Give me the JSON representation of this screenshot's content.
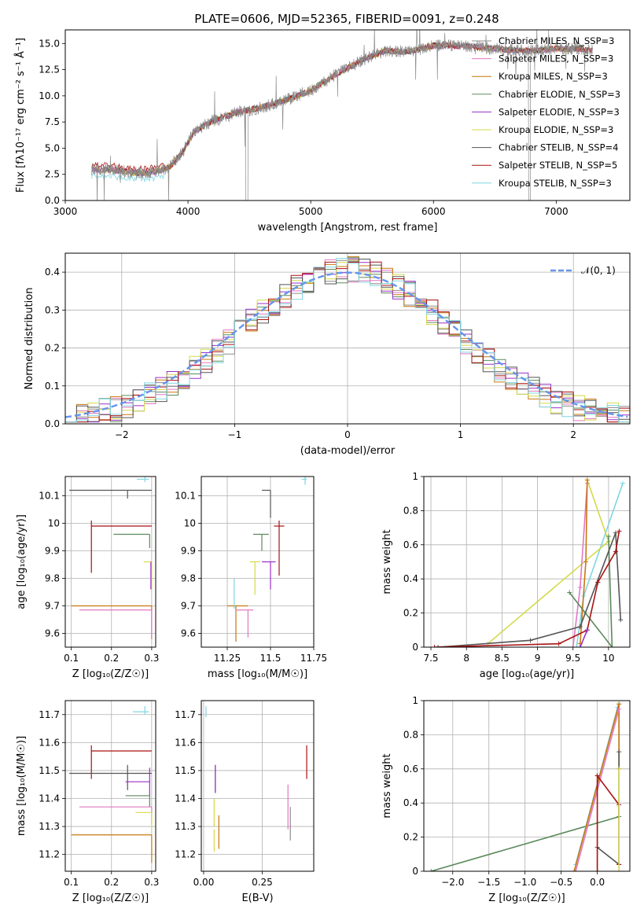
{
  "figure_title": "PLATE=0606, MJD=52365, FIBERID=0091, z=0.248",
  "chart_data": [
    {
      "type": "line",
      "id": "spectrum",
      "title": "PLATE=0606, MJD=52365, FIBERID=0091, z=0.248",
      "xlabel": "wavelength [Angstrom, rest frame]",
      "ylabel": "Flux [fλ10⁻¹⁷ erg cm⁻² s⁻¹ Å⁻¹]",
      "xlim": [
        3000,
        7600
      ],
      "ylim": [
        0,
        16.3
      ],
      "xticks": [
        3000,
        4000,
        5000,
        6000,
        7000
      ],
      "yticks": [
        0.0,
        2.5,
        5.0,
        7.5,
        10.0,
        12.5,
        15.0
      ],
      "ytick_labels": [
        "0.0",
        "2.5",
        "5.0",
        "7.5",
        "10.0",
        "12.5",
        "15.0"
      ],
      "legend_position": "right",
      "legend": [
        {
          "label": "Chabrier MILES, N_SSP=3",
          "color": "#8c8c8c"
        },
        {
          "label": "Salpeter MILES, N_SSP=3",
          "color": "#e377c2"
        },
        {
          "label": "Kroupa MILES, N_SSP=3",
          "color": "#c7770f"
        },
        {
          "label": "Chabrier ELODIE, N_SSP=3",
          "color": "#5b8a5b"
        },
        {
          "label": "Salpeter ELODIE, N_SSP=3",
          "color": "#9b30c8"
        },
        {
          "label": "Kroupa ELODIE, N_SSP=3",
          "color": "#d4d94a"
        },
        {
          "label": "Chabrier STELIB, N_SSP=4",
          "color": "#555555"
        },
        {
          "label": "Salpeter STELIB, N_SSP=5",
          "color": "#aa1111"
        },
        {
          "label": "Kroupa STELIB, N_SSP=3",
          "color": "#7fd6e0"
        }
      ],
      "continuum": {
        "x": [
          3200,
          3400,
          3600,
          3750,
          3850,
          3950,
          4050,
          4200,
          4400,
          4600,
          4800,
          5000,
          5200,
          5400,
          5600,
          5800,
          6000,
          6200,
          6400,
          6600,
          6800,
          7000,
          7200,
          7300
        ],
        "y": [
          3.0,
          2.9,
          2.6,
          2.8,
          3.2,
          4.5,
          6.6,
          7.6,
          8.4,
          8.9,
          9.6,
          10.5,
          12.0,
          13.3,
          14.3,
          14.2,
          14.8,
          14.8,
          14.6,
          14.4,
          14.3,
          14.5,
          14.5,
          14.3
        ]
      },
      "data_color": "#8c8c8c"
    },
    {
      "type": "bar",
      "id": "residuals",
      "xlabel": "(data-model)/error",
      "ylabel": "Normed distribution",
      "xlim": [
        -2.5,
        2.5
      ],
      "ylim": [
        0,
        0.45
      ],
      "xticks": [
        -2,
        -1,
        0,
        1,
        2
      ],
      "xtick_labels": [
        "−2",
        "−1",
        "0",
        "1",
        "2"
      ],
      "yticks": [
        0.0,
        0.1,
        0.2,
        0.3,
        0.4
      ],
      "ytick_labels": [
        "0.0",
        "0.1",
        "0.2",
        "0.3",
        "0.4"
      ],
      "grid": true,
      "legend_position": "top-right",
      "legend_label": "𝒩(0, 1)",
      "legend_color": "#6495ed",
      "bin_width": 0.1
    },
    {
      "type": "scatter",
      "id": "age-vs-Z",
      "xlabel": "Z [log₁₀(Z/Z☉)]",
      "ylabel": "age [log₁₀(age/yr)]",
      "xlim": [
        0.085,
        0.31
      ],
      "ylim": [
        9.55,
        10.17
      ],
      "xticks": [
        0.1,
        0.2,
        0.3
      ],
      "yticks": [
        9.6,
        9.7,
        9.8,
        9.9,
        10.0,
        10.1
      ]
    },
    {
      "type": "scatter",
      "id": "age-vs-mass",
      "xlabel": "mass [log₁₀(M/M☉)]",
      "xlim": [
        11.1,
        11.75
      ],
      "ylim": [
        9.55,
        10.17
      ],
      "xticks": [
        11.25,
        11.5,
        11.75
      ],
      "yticks": [
        9.6,
        9.7,
        9.8,
        9.9,
        10.0,
        10.1
      ]
    },
    {
      "type": "line",
      "id": "massweight-vs-age",
      "xlabel": "age [log₁₀(age/yr)]",
      "ylabel": "mass weight",
      "xlim": [
        7.4,
        10.3
      ],
      "ylim": [
        0,
        1
      ],
      "xticks": [
        7.5,
        8.0,
        8.5,
        9.0,
        9.5,
        10.0
      ],
      "yticks": [
        0.0,
        0.2,
        0.4,
        0.6,
        0.8,
        1.0
      ]
    },
    {
      "type": "scatter",
      "id": "mass-vs-Z",
      "xlabel": "Z [log₁₀(Z/Z☉)]",
      "ylabel": "mass [log₁₀(M/M☉)]",
      "xlim": [
        0.085,
        0.31
      ],
      "ylim": [
        11.14,
        11.75
      ],
      "xticks": [
        0.1,
        0.2,
        0.3
      ],
      "yticks": [
        11.2,
        11.3,
        11.4,
        11.5,
        11.6,
        11.7
      ]
    },
    {
      "type": "scatter",
      "id": "mass-vs-ebv",
      "xlabel": "E(B-V)",
      "xlim": [
        -0.01,
        0.47
      ],
      "ylim": [
        11.14,
        11.75
      ],
      "xticks": [
        0.0,
        0.25
      ],
      "xtick_labels": [
        "0.00",
        "0.25"
      ],
      "yticks": [
        11.2,
        11.3,
        11.4,
        11.5,
        11.6,
        11.7
      ]
    },
    {
      "type": "line",
      "id": "massweight-vs-Z",
      "xlabel": "Z [log₁₀(Z/Z☉)]",
      "ylabel": "mass weight",
      "xlim": [
        -2.4,
        0.45
      ],
      "ylim": [
        0,
        1
      ],
      "xticks": [
        -2.0,
        -1.5,
        -1.0,
        -0.5,
        0.0
      ],
      "xtick_labels": [
        "−2.0",
        "−1.5",
        "−1.0",
        "−0.5",
        "0.0"
      ],
      "yticks": [
        0.0,
        0.2,
        0.4,
        0.6,
        0.8,
        1.0
      ]
    }
  ]
}
